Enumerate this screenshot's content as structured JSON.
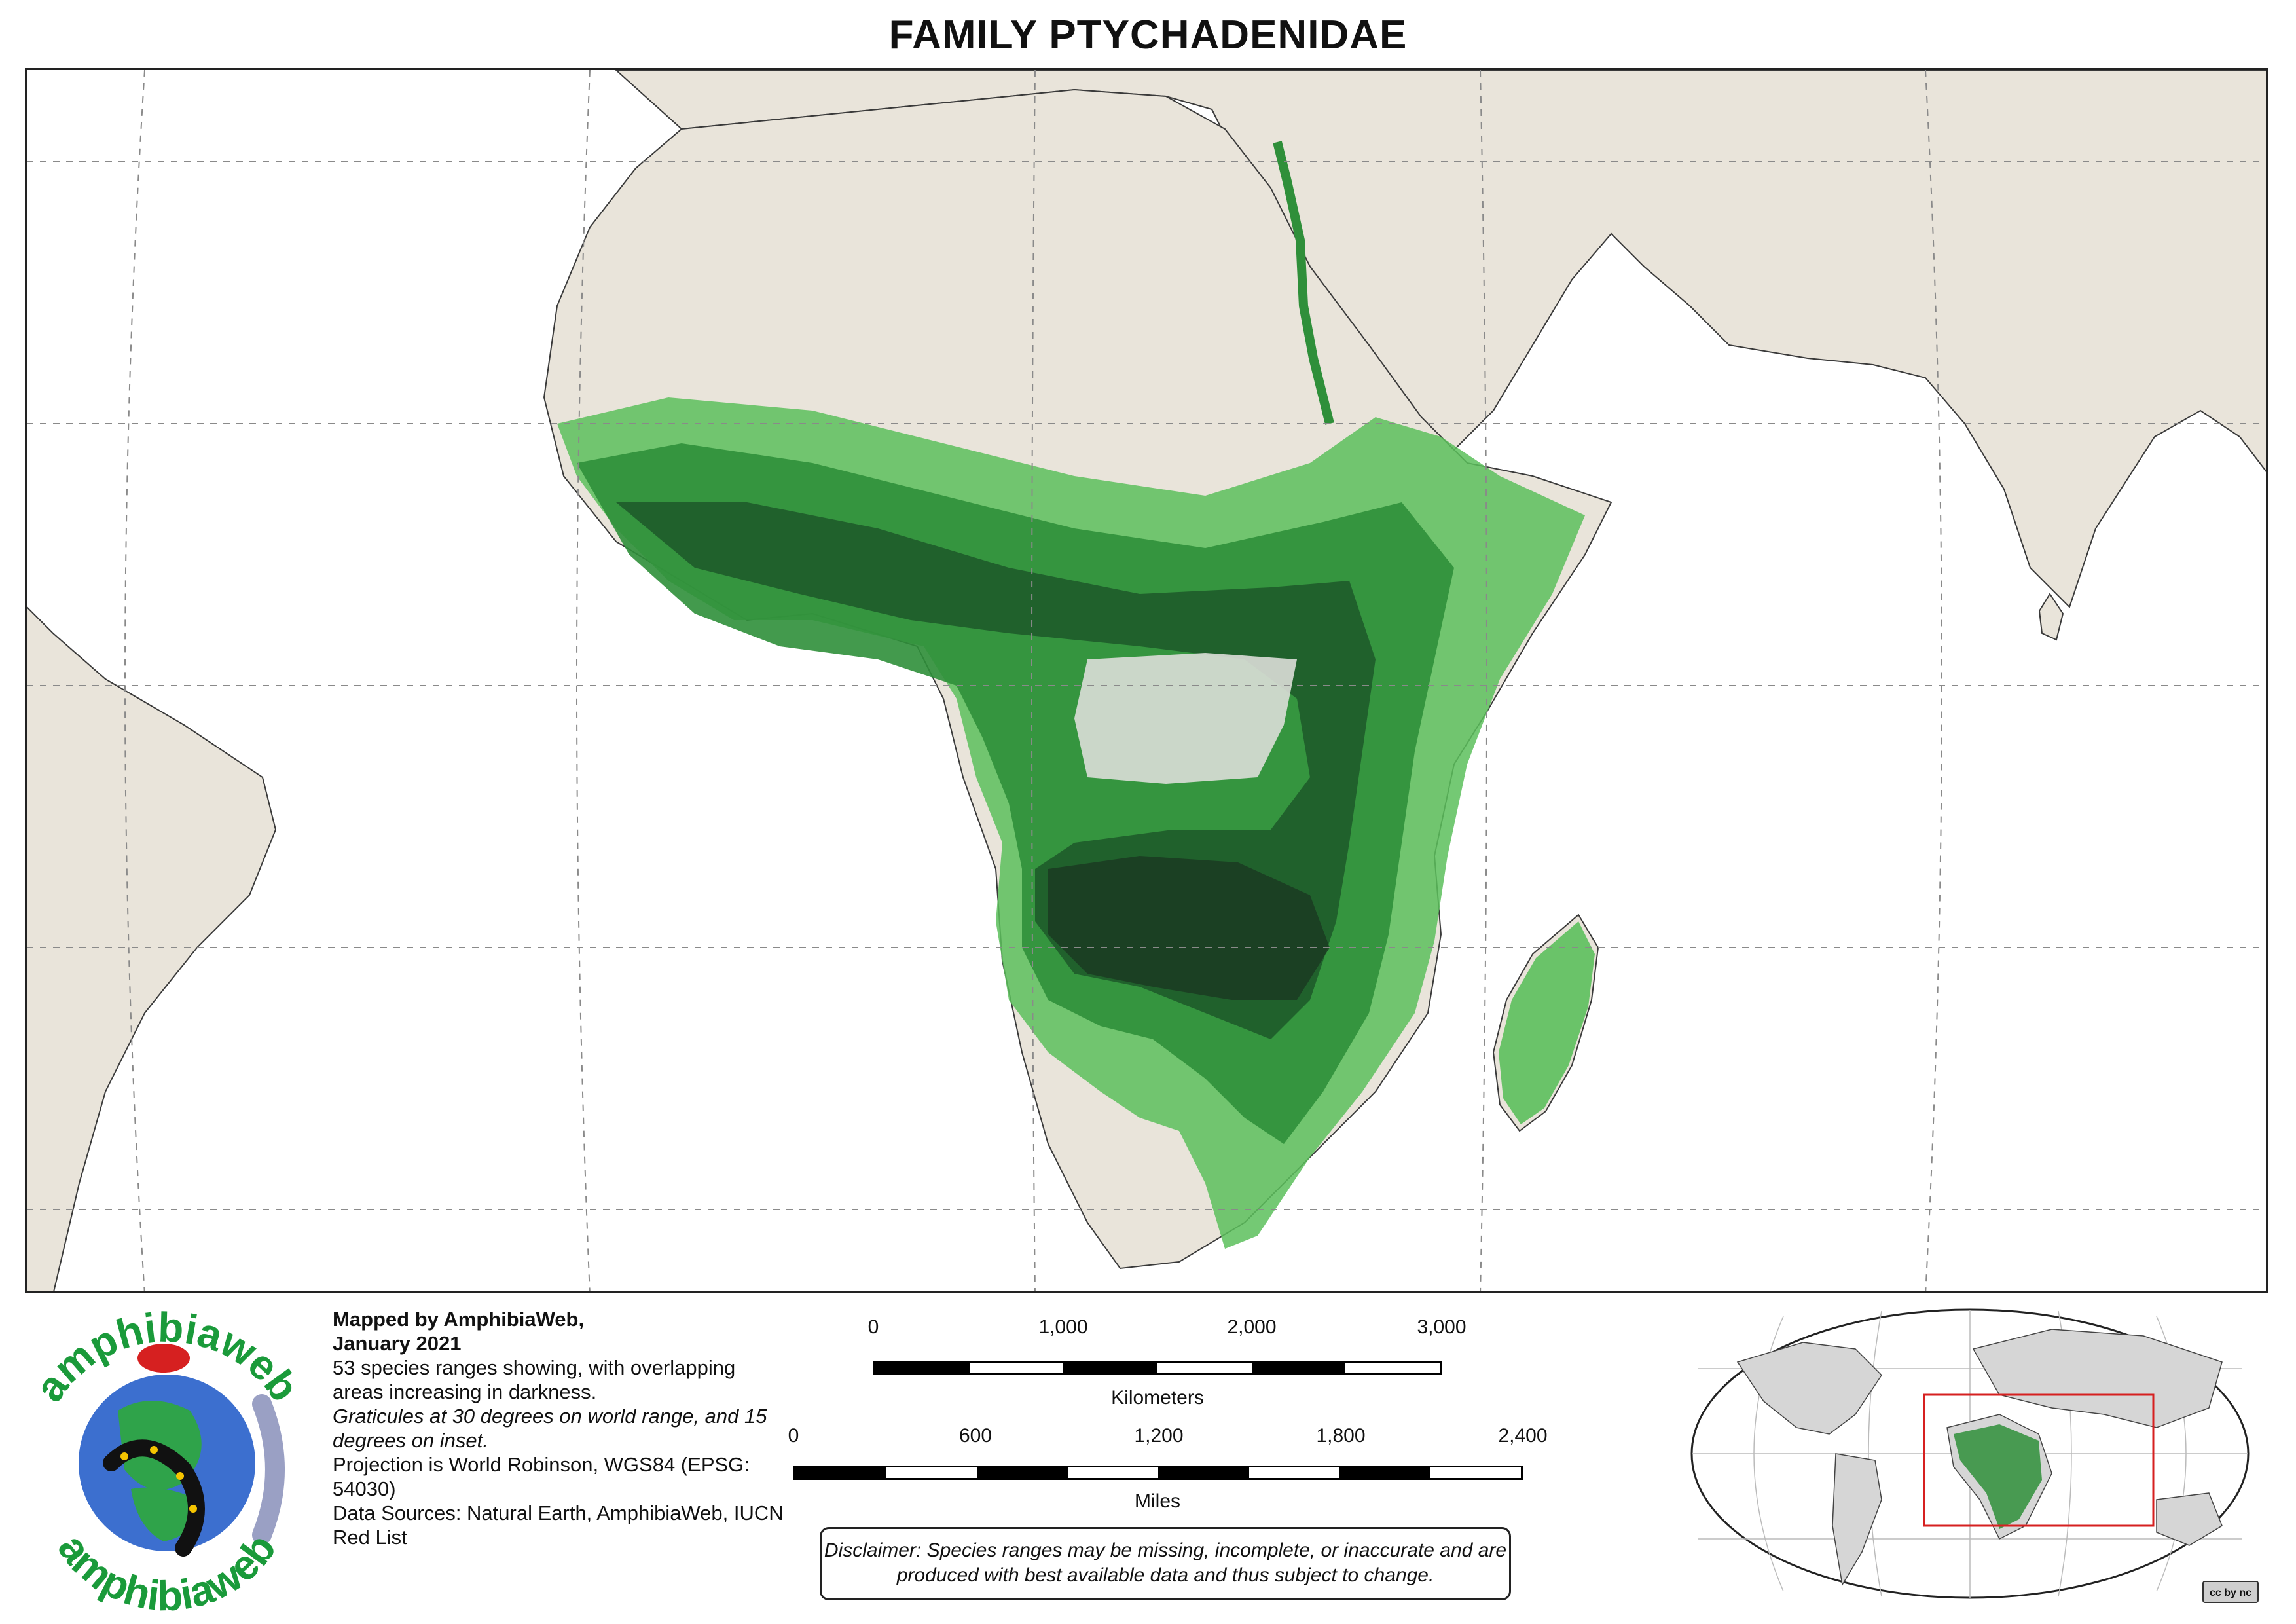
{
  "title": "FAMILY PTYCHADENIDAE",
  "map": {
    "colors": {
      "ocean": "#ffffff",
      "land": "#e9e4da",
      "land_green_tint": "#dfe4d3",
      "border": "#3a3a3a",
      "graticule": "#8a8a8a",
      "range_light": "#5cbf5c",
      "range_mid": "#2f8f3a",
      "range_dark": "#1e5b2a",
      "range_darkest": "#1b3b22"
    }
  },
  "credits": {
    "line1": "Mapped by AmphibiaWeb,",
    "line2": "January 2021",
    "summary": "53 species ranges showing, with overlapping areas increasing in darkness.",
    "graticules": "Graticules at 30 degrees on world range, and 15 degrees on inset.",
    "projection": "Projection is World Robinson, WGS84 (EPSG: 54030)",
    "sources": "Data Sources: Natural Earth, AmphibiaWeb, IUCN Red List"
  },
  "scale": {
    "km_ticks": [
      "0",
      "1,000",
      "2,000",
      "3,000"
    ],
    "km_unit": "Kilometers",
    "mi_ticks": [
      "0",
      "600",
      "1,200",
      "1,800",
      "2,400"
    ],
    "mi_unit": "Miles"
  },
  "disclaimer": "Disclaimer: Species ranges may be missing, incomplete, or inaccurate and are produced with best available data and thus subject to change.",
  "logo": {
    "text_top": "amphibiaweb",
    "text_bottom": "amphibiaweb",
    "color": "#1a9a3a"
  },
  "license": {
    "badge": "cc by nc"
  },
  "inset": {
    "highlight_color": "#d62020",
    "land_color": "#d6d6d6"
  }
}
